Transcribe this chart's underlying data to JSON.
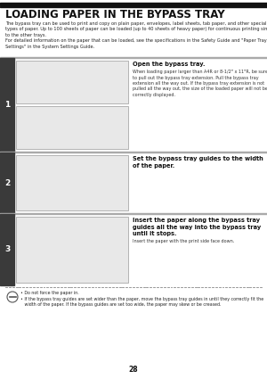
{
  "page_bg": "#ffffff",
  "title": "LOADING PAPER IN THE BYPASS TRAY",
  "title_fontsize": 8.5,
  "intro_text": "The bypass tray can be used to print and copy on plain paper, envelopes, label sheets, tab paper, and other special\ntypes of paper. Up to 100 sheets of paper can be loaded (up to 40 sheets of heavy paper) for continuous printing similar\nto the other trays.\nFor detailed information on the paper that can be loaded, see the specifications in the Safety Guide and \"Paper Tray\nSettings\" in the System Settings Guide.",
  "intro_fontsize": 3.6,
  "step_bar_color": "#3a3a3a",
  "step_num_fontsize": 6.5,
  "img_fill": "#e8e8e8",
  "img_edge": "#999999",
  "sep_color": "#aaaaaa",
  "dot_color": "#888888",
  "steps": [
    {
      "num": "1",
      "bold": "Open the bypass tray.",
      "bold_fs": 4.8,
      "sub": "When loading paper larger than A4R or 8-1/2\" x 11\"R, be sure\nto pull out the bypass tray extension. Pull the bypass tray\nextension all the way out. If the bypass tray extension is not\npulled all the way out, the size of the loaded paper will not be\ncorrectly displayed.",
      "sub_fs": 3.5,
      "two_images": true
    },
    {
      "num": "2",
      "bold": "Set the bypass tray guides to the width\nof the paper.",
      "bold_fs": 4.8,
      "sub": "",
      "sub_fs": 3.5,
      "two_images": false
    },
    {
      "num": "3",
      "bold": "Insert the paper along the bypass tray\nguides all the way into the bypass tray\nuntil it stops.",
      "bold_fs": 4.8,
      "sub": "Insert the paper with the print side face down.",
      "sub_fs": 3.5,
      "two_images": false
    }
  ],
  "note_text": "• Do not force the paper in.\n• If the bypass tray guides are set wider than the paper, move the bypass tray guides in until they correctly fit the\n   width of the paper. If the bypass guides are set too wide, the paper may skew or be creased.",
  "note_fontsize": 3.4,
  "page_num": "28",
  "page_num_fontsize": 5.5
}
